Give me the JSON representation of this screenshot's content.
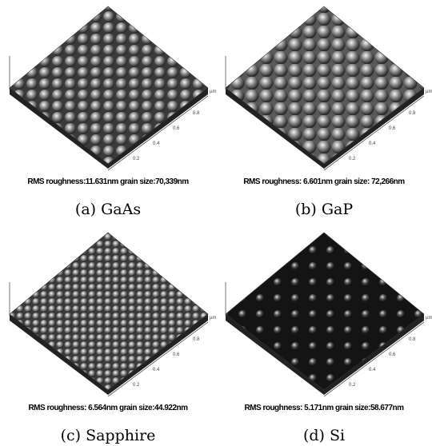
{
  "panels": [
    {
      "caption": "(a) GaAs",
      "stats": "RMS roughness:11.631nm  grain size:70,339nm",
      "axis_ticks": [
        "0.2",
        "0.4",
        "0.6",
        "0.8"
      ],
      "axis_unit": "µm"
    },
    {
      "caption": "(b) GaP",
      "stats": "RMS roughness: 6.601nm  grain size: 72,266nm",
      "axis_ticks": [
        "0.2",
        "0.4",
        "0.6",
        "0.8"
      ],
      "axis_unit": "µm"
    },
    {
      "caption": "(c) Sapphire",
      "stats": "RMS roughness: 6.564nm  grain size:44.922nm",
      "axis_ticks": [
        "0.2",
        "0.4",
        "0.6",
        "0.8"
      ],
      "axis_unit": "µm"
    },
    {
      "caption": "(d) Si",
      "stats": "RMS roughness: 5.171nm  grain size:58.677nm",
      "axis_ticks": [
        "0.2",
        "0.4",
        "0.6",
        "0.8"
      ],
      "axis_unit": "µm"
    }
  ]
}
